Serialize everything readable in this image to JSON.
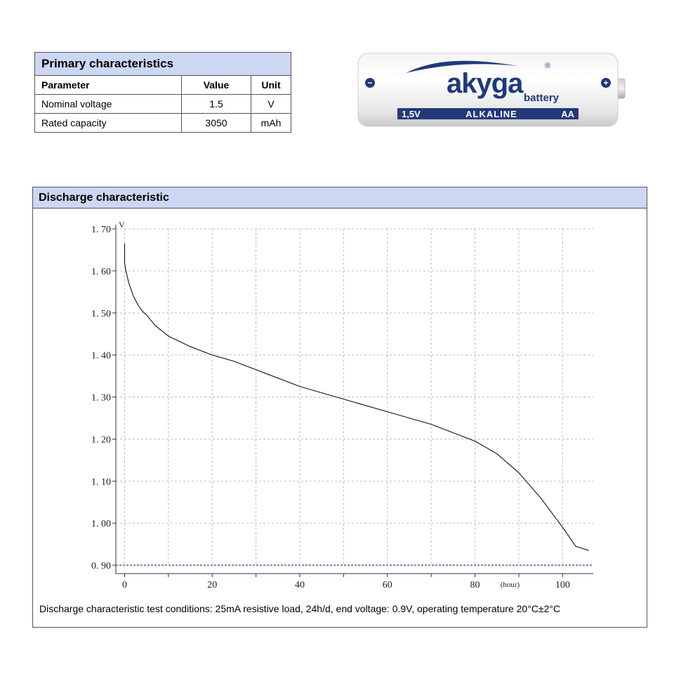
{
  "primary": {
    "title": "Primary characteristics",
    "headers": [
      "Parameter",
      "Value",
      "Unit"
    ],
    "rows": [
      {
        "param": "Nominal voltage",
        "value": "1.5",
        "unit": "V"
      },
      {
        "param": "Rated capacity",
        "value": "3050",
        "unit": "mAh"
      }
    ]
  },
  "battery": {
    "brand": "akyga",
    "sub": "battery",
    "reg": "®",
    "band_left": "1,5V",
    "band_center": "ALKALINE",
    "band_right": "AA",
    "minus": "−",
    "plus": "+",
    "brand_color": "#1f3a7a",
    "band_color": "#23397a"
  },
  "discharge": {
    "title": "Discharge characteristic",
    "footnote": "Discharge characteristic test conditions: 25mA resistive load, 24h/d, end voltage: 0.9V, operating temperature 20°C±2°C"
  },
  "chart_data": {
    "type": "line",
    "ylabel": "V",
    "xlabel": "(hour)",
    "xlim": [
      -2,
      107
    ],
    "ylim": [
      0.88,
      1.705
    ],
    "x_ticks": [
      0,
      20,
      40,
      60,
      80,
      100
    ],
    "x_tick_labels": [
      "0",
      "20",
      "40",
      "60",
      "80",
      "100"
    ],
    "y_ticks": [
      0.9,
      1.0,
      1.1,
      1.2,
      1.3,
      1.4,
      1.5,
      1.6,
      1.7
    ],
    "y_tick_labels": [
      "0. 90",
      "1. 00",
      "1. 10",
      "1. 20",
      "1. 30",
      "1. 40",
      "1. 50",
      "1. 60",
      "1. 70"
    ],
    "grid": true,
    "cutoff_line": 0.9,
    "series": [
      {
        "x": [
          0,
          0,
          0.3,
          1,
          2,
          3,
          4,
          5,
          7,
          10,
          15,
          20,
          25,
          30,
          40,
          50,
          60,
          70,
          75,
          80,
          85,
          90,
          95,
          100,
          103,
          106
        ],
        "y": [
          1.665,
          1.62,
          1.6,
          1.57,
          1.54,
          1.52,
          1.505,
          1.495,
          1.47,
          1.445,
          1.42,
          1.4,
          1.385,
          1.365,
          1.325,
          1.295,
          1.265,
          1.235,
          1.215,
          1.195,
          1.165,
          1.12,
          1.06,
          0.99,
          0.945,
          0.935
        ]
      }
    ],
    "colors": {
      "line": "#111111",
      "grid": "#bdbdbd",
      "cutoff": "#2b3a9a"
    }
  }
}
